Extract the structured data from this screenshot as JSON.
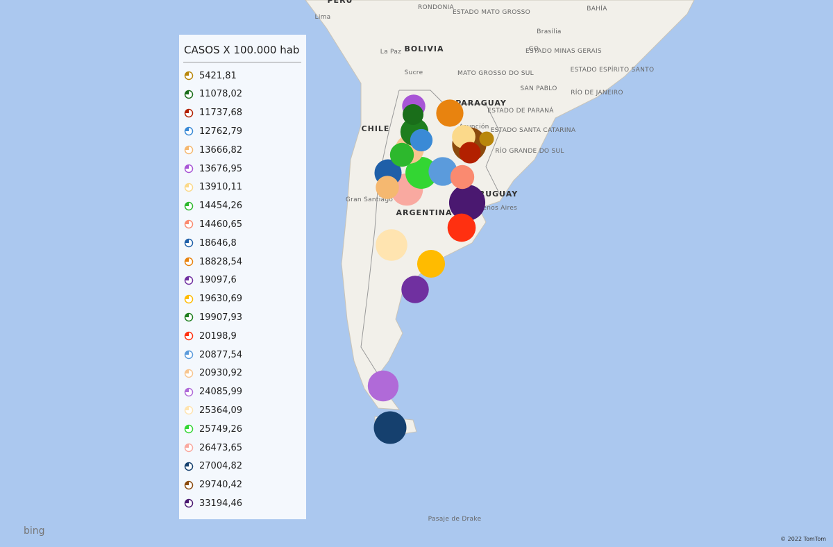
{
  "legend": {
    "title": "CASOS X 100.000 hab",
    "items": [
      {
        "label": "5421,81",
        "value": 5421.81,
        "color": "#b8860b"
      },
      {
        "label": "11078,02",
        "value": 11078.02,
        "color": "#1a6e1a"
      },
      {
        "label": "11737,68",
        "value": 11737.68,
        "color": "#b22000"
      },
      {
        "label": "12762,79",
        "value": 12762.79,
        "color": "#3a8ad6"
      },
      {
        "label": "13666,82",
        "value": 13666.82,
        "color": "#f5b870"
      },
      {
        "label": "13676,95",
        "value": 13676.95,
        "color": "#a855d6"
      },
      {
        "label": "13910,11",
        "value": 13910.11,
        "color": "#fbd98a"
      },
      {
        "label": "14454,26",
        "value": 14454.26,
        "color": "#2db82d"
      },
      {
        "label": "14460,65",
        "value": 14460.65,
        "color": "#fa8a70"
      },
      {
        "label": "18646,8",
        "value": 18646.8,
        "color": "#1f5fa8"
      },
      {
        "label": "18828,54",
        "value": 18828.54,
        "color": "#e8830f"
      },
      {
        "label": "19097,6",
        "value": 19097.6,
        "color": "#7030a0"
      },
      {
        "label": "19630,69",
        "value": 19630.69,
        "color": "#ffbb00"
      },
      {
        "label": "19907,93",
        "value": 19907.93,
        "color": "#1e7e1e"
      },
      {
        "label": "20198,9",
        "value": 20198.9,
        "color": "#ff3010"
      },
      {
        "label": "20877,54",
        "value": 20877.54,
        "color": "#5b9bdc"
      },
      {
        "label": "20930,92",
        "value": 20930.92,
        "color": "#f7c58f"
      },
      {
        "label": "24085,99",
        "value": 24085.99,
        "color": "#b06ad8"
      },
      {
        "label": "25364,09",
        "value": 25364.09,
        "color": "#ffe4b0"
      },
      {
        "label": "25749,26",
        "value": 25749.26,
        "color": "#33d633"
      },
      {
        "label": "26473,65",
        "value": 26473.65,
        "color": "#f9a9a0"
      },
      {
        "label": "27004,82",
        "value": 27004.82,
        "color": "#15406e"
      },
      {
        "label": "29740,42",
        "value": 29740.42,
        "color": "#8b4a0d"
      },
      {
        "label": "33194,46",
        "value": 33194.46,
        "color": "#4a1870"
      }
    ]
  },
  "map_labels": [
    "PERÚ",
    "Lima",
    "RONDONIA",
    "ESTADO MATO GROSSO",
    "BAHÍA",
    "Brasília",
    "La Paz",
    "BOLIVIA",
    "Sucre",
    "GO",
    "ESTADO MINAS GERAIS",
    "MATO GROSSO DO SUL",
    "ESTADO ESPÍRITO SANTO",
    "SAN PABLO",
    "RÍO DE JANEIRO",
    "PARAGUAY",
    "ESTADO DE PARANÁ",
    "Asunción",
    "ESTADO SANTA CATARINA",
    "RÍO GRANDE DO SUL",
    "CHILE",
    "Gran Santiago",
    "ARGENTINA",
    "URUGUAY",
    "Buenos Aires",
    "Pasaje de Drake"
  ],
  "logo": "bing",
  "attribution": "© 2022 TomTom"
}
